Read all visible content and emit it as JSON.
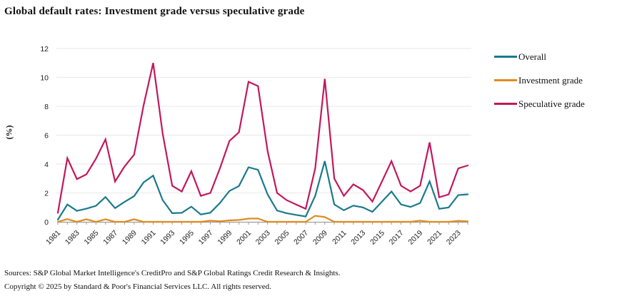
{
  "chart_data": {
    "type": "line",
    "title": "Global default rates: Investment grade versus speculative grade",
    "xlabel": "",
    "ylabel": "(%)",
    "ylim": [
      0,
      12
    ],
    "yticks": [
      0,
      2,
      4,
      6,
      8,
      10,
      12
    ],
    "grid": true,
    "legend_position": "right",
    "x": [
      1981,
      1982,
      1983,
      1984,
      1985,
      1986,
      1987,
      1988,
      1989,
      1990,
      1991,
      1992,
      1993,
      1994,
      1995,
      1996,
      1997,
      1998,
      1999,
      2000,
      2001,
      2002,
      2003,
      2004,
      2005,
      2006,
      2007,
      2008,
      2009,
      2010,
      2011,
      2012,
      2013,
      2014,
      2015,
      2016,
      2017,
      2018,
      2019,
      2020,
      2021,
      2022,
      2023,
      2024
    ],
    "xtick_labels": [
      "1981",
      "1983",
      "1985",
      "1987",
      "1989",
      "1991",
      "1993",
      "1995",
      "1997",
      "1999",
      "2001",
      "2003",
      "2005",
      "2007",
      "2009",
      "2011",
      "2013",
      "2015",
      "2017",
      "2019",
      "2021",
      "2023"
    ],
    "series": [
      {
        "name": "Overall",
        "color": "#1a7a8c",
        "values": [
          0.15,
          1.2,
          0.76,
          0.91,
          1.11,
          1.72,
          0.95,
          1.38,
          1.78,
          2.73,
          3.2,
          1.5,
          0.6,
          0.62,
          1.05,
          0.51,
          0.63,
          1.3,
          2.14,
          2.48,
          3.78,
          3.6,
          1.9,
          0.78,
          0.6,
          0.48,
          0.37,
          1.8,
          4.2,
          1.2,
          0.8,
          1.12,
          1.0,
          0.69,
          1.4,
          2.1,
          1.2,
          1.03,
          1.3,
          2.8,
          0.9,
          1.0,
          1.85,
          1.9
        ]
      },
      {
        "name": "Investment grade",
        "color": "#e08a1e",
        "values": [
          0.0,
          0.19,
          0.0,
          0.18,
          0.0,
          0.18,
          0.0,
          0.0,
          0.18,
          0.0,
          0.0,
          0.0,
          0.0,
          0.0,
          0.0,
          0.0,
          0.08,
          0.04,
          0.1,
          0.13,
          0.22,
          0.23,
          0.0,
          0.0,
          0.0,
          0.0,
          0.0,
          0.42,
          0.33,
          0.0,
          0.0,
          0.0,
          0.0,
          0.0,
          0.0,
          0.0,
          0.0,
          0.0,
          0.08,
          0.0,
          0.0,
          0.0,
          0.07,
          0.03
        ]
      },
      {
        "name": "Speculative grade",
        "color": "#c2185b",
        "values": [
          0.62,
          4.41,
          2.96,
          3.29,
          4.37,
          5.71,
          2.79,
          3.83,
          4.65,
          8.07,
          11.0,
          6.1,
          2.5,
          2.1,
          3.5,
          1.8,
          2.0,
          3.7,
          5.6,
          6.2,
          9.7,
          9.4,
          4.9,
          2.0,
          1.5,
          1.2,
          0.9,
          3.7,
          9.9,
          3.0,
          1.8,
          2.6,
          2.2,
          1.4,
          2.8,
          4.2,
          2.5,
          2.1,
          2.5,
          5.5,
          1.7,
          1.9,
          3.7,
          3.9
        ]
      }
    ]
  },
  "legend": {
    "items": [
      {
        "label": "Overall",
        "color": "#1a7a8c"
      },
      {
        "label": "Investment grade",
        "color": "#e08a1e"
      },
      {
        "label": "Speculative grade",
        "color": "#c2185b"
      }
    ]
  },
  "footer": {
    "sources": "Sources: S&P Global Market Intelligence's CreditPro and S&P Global Ratings Credit Research & Insights.",
    "copyright": "Copyright © 2025 by Standard & Poor's Financial Services LLC. All rights reserved."
  }
}
